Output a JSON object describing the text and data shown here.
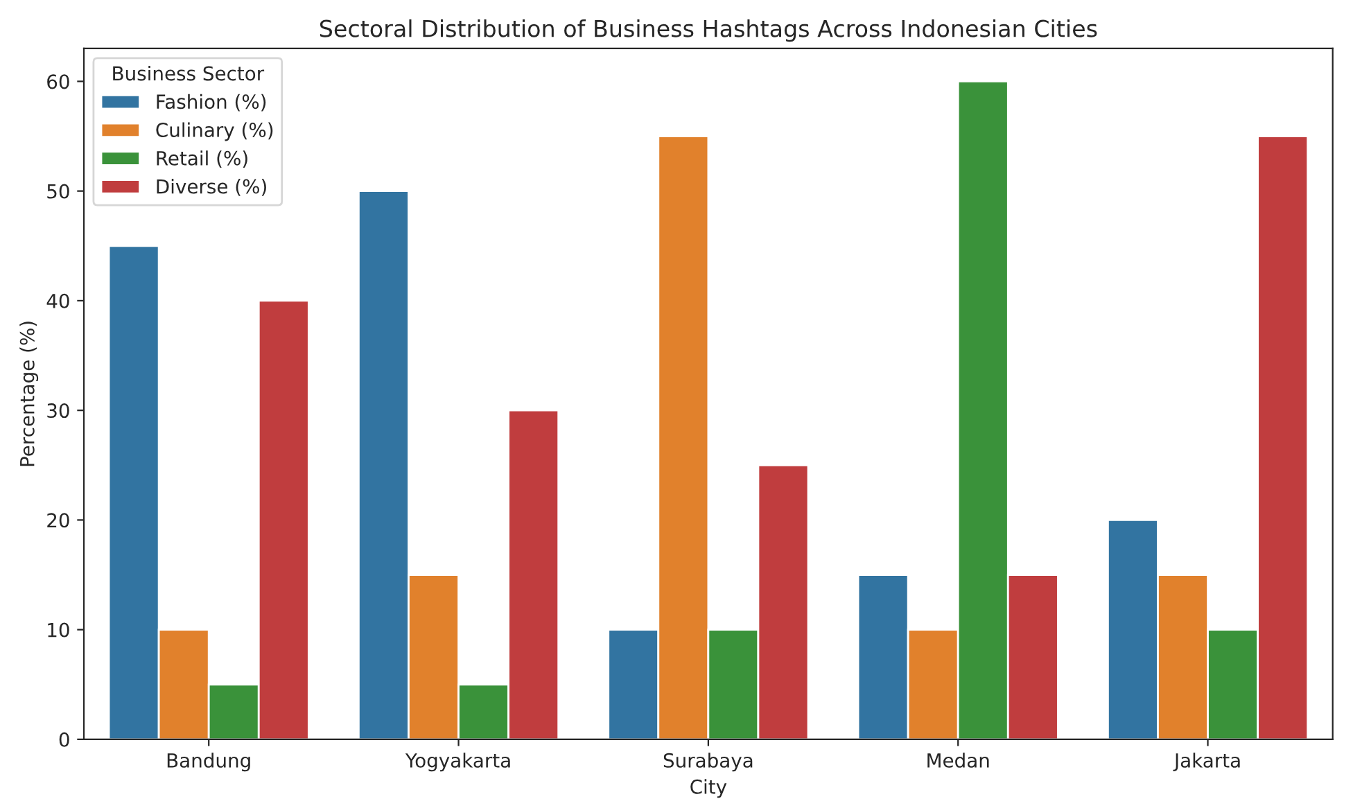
{
  "chart_data": {
    "type": "bar",
    "title": "Sectoral Distribution of Business Hashtags Across Indonesian Cities",
    "xlabel": "City",
    "ylabel": "Percentage (%)",
    "legend_title": "Business Sector",
    "categories": [
      "Bandung",
      "Yogyakarta",
      "Surabaya",
      "Medan",
      "Jakarta"
    ],
    "series": [
      {
        "name": "Fashion (%)",
        "color": "#3274a1",
        "values": [
          45,
          50,
          10,
          15,
          20
        ]
      },
      {
        "name": "Culinary (%)",
        "color": "#e1812c",
        "values": [
          10,
          15,
          55,
          10,
          15
        ]
      },
      {
        "name": "Retail (%)",
        "color": "#3a923a",
        "values": [
          5,
          5,
          10,
          60,
          10
        ]
      },
      {
        "name": "Diverse (%)",
        "color": "#c03d3e",
        "values": [
          40,
          30,
          25,
          15,
          55
        ]
      }
    ],
    "ylim": [
      0,
      63
    ],
    "yticks": [
      0,
      10,
      20,
      30,
      40,
      50,
      60
    ],
    "grid": false,
    "legend": "top left"
  }
}
